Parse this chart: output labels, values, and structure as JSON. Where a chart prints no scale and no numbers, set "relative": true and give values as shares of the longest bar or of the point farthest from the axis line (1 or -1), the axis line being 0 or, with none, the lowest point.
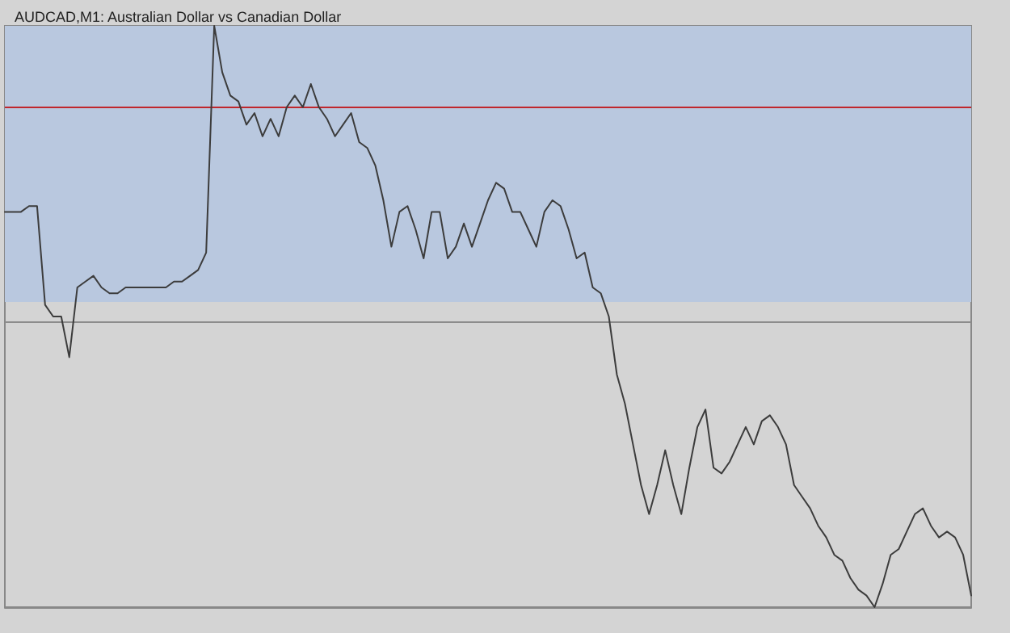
{
  "chart_data": {
    "type": "line",
    "title": "AUDCAD,M1: Australian Dollar vs Canadian Dollar",
    "relative": true,
    "grid": false,
    "marker": "none",
    "line_style": "solid",
    "categories": [
      null,
      null,
      null,
      null,
      null,
      null,
      null,
      null,
      null,
      null,
      null,
      null,
      null,
      null,
      null,
      null,
      null,
      null,
      null,
      null,
      null,
      null,
      null,
      null,
      null,
      null,
      null,
      null,
      null,
      null,
      null,
      null,
      null,
      null,
      null,
      null,
      null,
      null,
      null,
      null,
      null,
      null,
      null,
      null,
      null,
      null,
      null,
      null,
      null,
      null,
      null,
      null,
      null,
      null,
      null,
      null,
      null,
      null,
      null,
      null,
      null,
      null,
      null,
      null,
      null,
      null,
      null,
      null,
      null,
      null,
      null,
      null,
      null,
      null,
      null,
      null,
      null,
      null,
      null,
      null,
      null,
      null,
      null,
      null,
      null,
      null,
      null,
      null,
      null,
      null,
      null,
      null,
      null,
      null,
      null,
      null,
      null,
      null,
      null,
      null,
      null,
      null,
      null,
      null,
      null,
      null,
      null,
      null,
      null,
      null,
      null,
      null,
      null,
      null,
      null,
      null,
      null,
      null,
      null,
      null,
      null
    ],
    "series": [
      {
        "color": "#3c3c3c",
        "values": [
          0.68,
          0.68,
          0.68,
          0.69,
          0.69,
          0.52,
          0.5,
          0.5,
          0.43,
          0.55,
          0.56,
          0.57,
          0.55,
          0.54,
          0.54,
          0.55,
          0.55,
          0.55,
          0.55,
          0.55,
          0.55,
          0.56,
          0.56,
          0.57,
          0.58,
          0.61,
          1,
          0.92,
          0.88,
          0.87,
          0.83,
          0.85,
          0.81,
          0.84,
          0.81,
          0.86,
          0.88,
          0.86,
          0.9,
          0.86,
          0.84,
          0.81,
          0.83,
          0.85,
          0.8,
          0.79,
          0.76,
          0.7,
          0.62,
          0.68,
          0.69,
          0.65,
          0.6,
          0.68,
          0.68,
          0.6,
          0.62,
          0.66,
          0.62,
          0.66,
          0.7,
          0.73,
          0.72,
          0.68,
          0.68,
          0.65,
          0.62,
          0.68,
          0.7,
          0.69,
          0.65,
          0.6,
          0.61,
          0.55,
          0.54,
          0.5,
          0.4,
          0.35,
          0.28,
          0.21,
          0.16,
          0.21,
          0.27,
          0.21,
          0.16,
          0.24,
          0.31,
          0.34,
          0.24,
          0.23,
          0.25,
          0.28,
          0.31,
          0.28,
          0.32,
          0.33,
          0.31,
          0.28,
          0.21,
          0.19,
          0.17,
          0.14,
          0.12,
          0.09,
          0.08,
          0.05,
          0.03,
          0.02,
          0,
          0.04,
          0.09,
          0.1,
          0.13,
          0.16,
          0.17,
          0.14,
          0.12,
          0.13,
          0.12,
          0.09,
          0.02
        ]
      }
    ],
    "bands": [
      {
        "axis": "y",
        "from": 0.525,
        "to": 1,
        "color": "#b9c8df"
      }
    ],
    "ref_lines": [
      {
        "axis": "y",
        "value": 0.86,
        "color": "#c0272d",
        "line_style": "solid"
      },
      {
        "axis": "y",
        "value": 0.49,
        "color": "#8c8c8c",
        "line_style": "solid"
      }
    ]
  }
}
